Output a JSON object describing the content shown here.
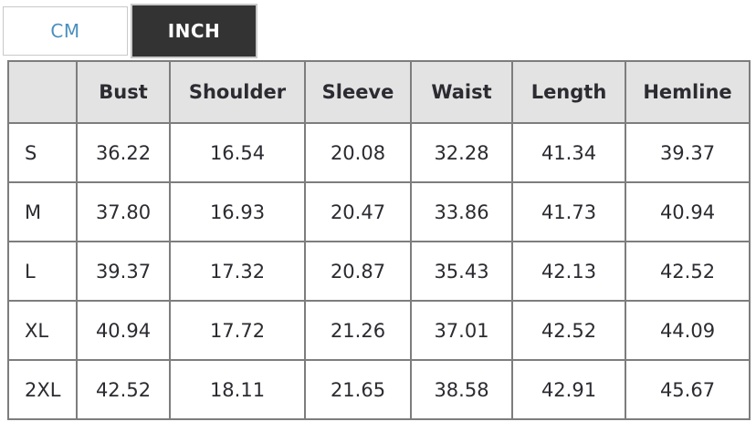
{
  "toggle": {
    "cm_label": "CM",
    "inch_label": "INCH",
    "active_unit": "INCH"
  },
  "colors": {
    "cm_text": "#4a8fbe",
    "inch_active_bg": "#333333",
    "inch_active_text": "#ffffff",
    "header_bg": "#e3e3e3",
    "table_border": "#7d7d7d",
    "text": "#2b2b31"
  },
  "size_chart": {
    "columns": [
      "",
      "Bust",
      "Shoulder",
      "Sleeve",
      "Waist",
      "Length",
      "Hemline"
    ],
    "rows": [
      {
        "size": "S",
        "values": [
          "36.22",
          "16.54",
          "20.08",
          "32.28",
          "41.34",
          "39.37"
        ]
      },
      {
        "size": "M",
        "values": [
          "37.80",
          "16.93",
          "20.47",
          "33.86",
          "41.73",
          "40.94"
        ]
      },
      {
        "size": "L",
        "values": [
          "39.37",
          "17.32",
          "20.87",
          "35.43",
          "42.13",
          "42.52"
        ]
      },
      {
        "size": "XL",
        "values": [
          "40.94",
          "17.72",
          "21.26",
          "37.01",
          "42.52",
          "44.09"
        ]
      },
      {
        "size": "2XL",
        "values": [
          "42.52",
          "18.11",
          "21.65",
          "38.58",
          "42.91",
          "45.67"
        ]
      }
    ]
  }
}
